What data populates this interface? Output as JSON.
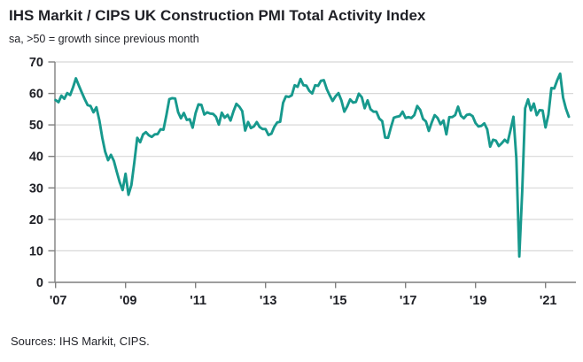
{
  "page": {
    "title": "IHS Markit / CIPS UK Construction PMI Total Activity Index",
    "subtitle": "sa, >50 = growth since previous month",
    "source": "Sources: IHS Markit, CIPS."
  },
  "colors": {
    "line": "#17998d",
    "grid": "#d8d8d8",
    "axis": "#7f7f7f",
    "text": "#1f2026"
  },
  "chart_data": {
    "type": "line",
    "title": "IHS Markit / CIPS UK Construction PMI Total Activity Index",
    "subtitle": "sa, >50 = growth since previous month",
    "xlabel": "",
    "ylabel": "",
    "ylim": [
      0,
      70
    ],
    "y_ticks": [
      0,
      10,
      20,
      30,
      40,
      50,
      60,
      70
    ],
    "grid": "horizontal",
    "legend": "none",
    "x_start": "2007-01",
    "x_frequency": "monthly",
    "x_tick_labels": [
      "'07",
      "'09",
      "'11",
      "'13",
      "'15",
      "'17",
      "'19",
      "'21"
    ],
    "x_tick_month_indices": [
      0,
      24,
      48,
      72,
      96,
      120,
      144,
      168
    ],
    "series": [
      {
        "name": "UK Construction PMI Total Activity Index",
        "color": "#17998d",
        "values": [
          57.9,
          57.2,
          59.3,
          58.3,
          60.1,
          59.5,
          62.0,
          64.8,
          62.5,
          60.3,
          58.2,
          56.3,
          56.0,
          54.0,
          55.6,
          51.5,
          46.0,
          41.5,
          38.8,
          40.5,
          38.6,
          35.1,
          31.8,
          29.3,
          34.5,
          27.8,
          30.9,
          38.1,
          45.9,
          44.5,
          47.0,
          47.7,
          46.7,
          46.2,
          47.0,
          47.1,
          48.6,
          48.5,
          53.1,
          58.2,
          58.5,
          58.4,
          54.1,
          52.1,
          53.8,
          51.6,
          51.8,
          49.1,
          53.7,
          56.5,
          56.4,
          53.3,
          54.0,
          53.6,
          53.5,
          52.6,
          50.1,
          53.9,
          52.3,
          53.2,
          51.4,
          54.3,
          56.7,
          55.8,
          54.4,
          48.2,
          50.9,
          49.0,
          49.5,
          50.9,
          49.3,
          48.7,
          48.7,
          46.8,
          47.2,
          49.4,
          50.8,
          51.0,
          57.0,
          59.1,
          58.9,
          59.4,
          62.6,
          62.1,
          64.6,
          62.6,
          62.5,
          60.8,
          60.0,
          62.6,
          62.4,
          64.0,
          64.2,
          61.4,
          59.4,
          57.6,
          59.1,
          60.1,
          57.8,
          54.2,
          55.9,
          58.1,
          57.1,
          57.3,
          59.9,
          58.8,
          55.3,
          57.8,
          55.0,
          54.2,
          54.2,
          52.0,
          51.2,
          46.0,
          45.9,
          49.2,
          52.3,
          52.6,
          52.8,
          54.2,
          52.2,
          52.5,
          52.2,
          53.1,
          56.0,
          54.8,
          51.9,
          51.1,
          48.1,
          50.8,
          53.1,
          52.2,
          50.2,
          51.4,
          47.0,
          52.5,
          52.5,
          53.1,
          55.8,
          52.9,
          52.1,
          53.2,
          53.4,
          52.8,
          50.6,
          49.5,
          49.7,
          50.5,
          48.6,
          43.1,
          45.3,
          45.0,
          43.3,
          44.2,
          45.3,
          44.4,
          48.4,
          52.6,
          39.3,
          8.2,
          28.9,
          55.3,
          58.1,
          54.6,
          56.8,
          53.1,
          54.7,
          54.6,
          49.2,
          53.3,
          61.7,
          61.6,
          64.2,
          66.3,
          58.7,
          55.2,
          52.6
        ]
      }
    ]
  }
}
